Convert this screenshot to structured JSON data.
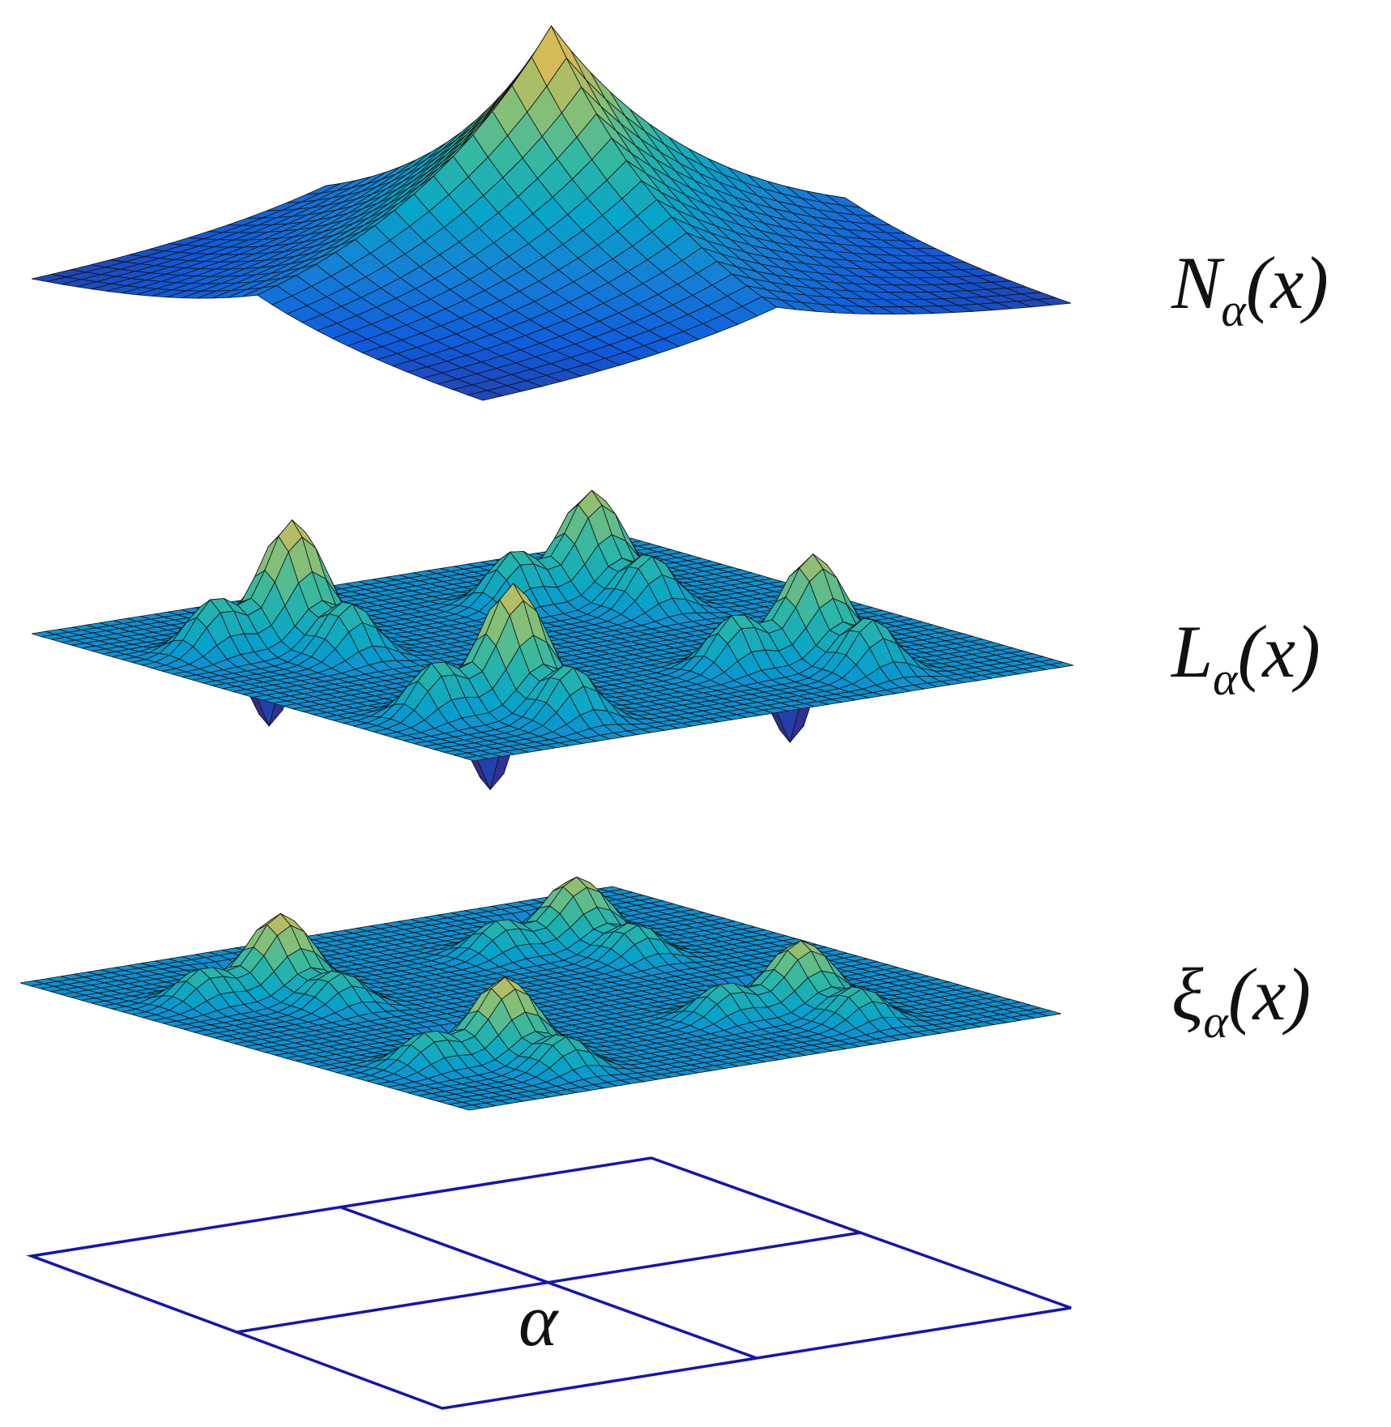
{
  "labels": [
    {
      "symbol": "N",
      "subscript": "α",
      "argument": "(x)"
    },
    {
      "symbol": "L",
      "subscript": "α",
      "argument": "(x)"
    },
    {
      "symbol": "ξ",
      "subscript": "α",
      "argument": "(x)"
    }
  ],
  "grid_label": "α"
}
